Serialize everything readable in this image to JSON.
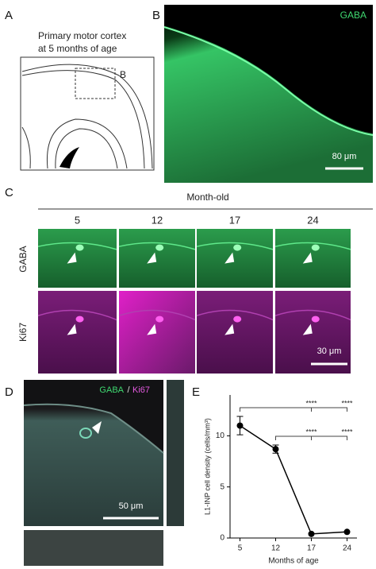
{
  "panels": {
    "a": {
      "label": "A",
      "title_lines": [
        "Primary motor cortex",
        "at 5 months of age"
      ],
      "inset_label": "B"
    },
    "b": {
      "label": "B",
      "stain": "GABA",
      "scale": "80 μm"
    },
    "c": {
      "label": "C",
      "header": "Month-old",
      "columns": [
        "5",
        "12",
        "17",
        "24"
      ],
      "rows": [
        "GABA",
        "Ki67"
      ],
      "scale": "30 μm"
    },
    "d": {
      "label": "D",
      "stain_1": "GABA",
      "separator": "/",
      "stain_2": "Ki67",
      "scale": "50 μm"
    },
    "e": {
      "label": "E"
    }
  },
  "chart_data": {
    "type": "line",
    "categories": [
      "5",
      "12",
      "17",
      "24"
    ],
    "values": [
      11.0,
      8.7,
      0.4,
      0.6
    ],
    "errors": [
      0.9,
      0.4,
      null,
      null
    ],
    "color": "#000000",
    "xlabel": "Months of age",
    "ylabel": "L1-INP cell density (cells/mm³)",
    "ylim": [
      0,
      14
    ],
    "yticks": [
      0,
      5,
      10
    ],
    "annotations": [
      "****",
      "****",
      "****",
      "****"
    ]
  }
}
